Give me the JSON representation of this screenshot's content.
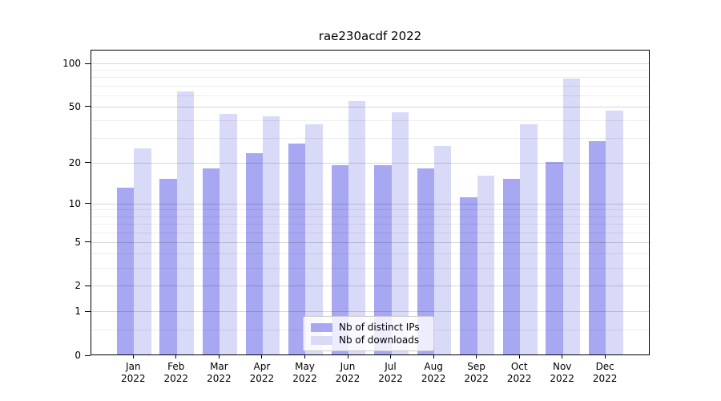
{
  "title": "rae230acdf 2022",
  "colors": {
    "distinct_ips": "#a7a7f2",
    "downloads": "#d9d9f8",
    "axis": "#000000",
    "grid_major": "#d9d9d9",
    "grid_minor": "#ededed",
    "legend_border": "#cccccc",
    "background": "#ffffff"
  },
  "legend": {
    "position": "lower center",
    "items": [
      {
        "label": "Nb of distinct IPs",
        "color_key": "distinct_ips"
      },
      {
        "label": "Nb of downloads",
        "color_key": "downloads"
      }
    ]
  },
  "chart_data": {
    "type": "bar",
    "title": "rae230acdf 2022",
    "xlabel": "",
    "ylabel": "",
    "year_label": "2022",
    "categories": [
      "Jan",
      "Feb",
      "Mar",
      "Apr",
      "May",
      "Jun",
      "Jul",
      "Aug",
      "Sep",
      "Oct",
      "Nov",
      "Dec"
    ],
    "series": [
      {
        "name": "Nb of distinct IPs",
        "color": "#a7a7f2",
        "values": [
          13,
          15,
          18,
          23,
          27,
          19,
          19,
          18,
          11,
          15,
          20,
          28
        ]
      },
      {
        "name": "Nb of downloads",
        "color": "#d9d9f8",
        "values": [
          25,
          63,
          44,
          42,
          37,
          54,
          45,
          26,
          16,
          37,
          77,
          46
        ]
      }
    ],
    "yscale": "log1p",
    "yticks": [
      0,
      1,
      2,
      5,
      10,
      20,
      50,
      100
    ],
    "minor_gridlines": [
      0.5,
      3,
      4,
      6,
      7,
      8,
      9,
      30,
      40,
      60,
      70,
      80,
      90
    ],
    "ylim": [
      0,
      124
    ],
    "grid": true,
    "legend_position": "lower center"
  }
}
